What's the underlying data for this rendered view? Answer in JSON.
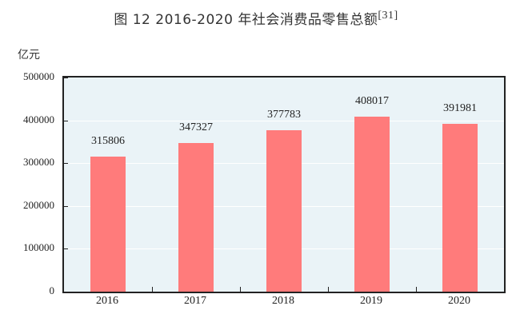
{
  "title": {
    "main": "图 12   2016-2020 年社会消费品零售总额",
    "ref": "[31]"
  },
  "unit_label": "亿元",
  "colors": {
    "bar": "#ff7b7b",
    "plot_bg": "#eaf3f7",
    "axis": "#222222"
  },
  "y_ticks": [
    "500000",
    "400000",
    "300000",
    "200000",
    "100000",
    "0"
  ],
  "chart_data": {
    "type": "bar",
    "title": "图 12 2016-2020 年社会消费品零售总额[31]",
    "xlabel": "",
    "ylabel": "亿元",
    "categories": [
      "2016",
      "2017",
      "2018",
      "2019",
      "2020"
    ],
    "values": [
      315806,
      347327,
      377783,
      408017,
      391981
    ],
    "value_labels": [
      "315806",
      "347327",
      "377783",
      "408017",
      "391981"
    ],
    "ylim": [
      0,
      500000
    ],
    "yticks": [
      0,
      100000,
      200000,
      300000,
      400000,
      500000
    ],
    "grid": true,
    "legend": null
  }
}
